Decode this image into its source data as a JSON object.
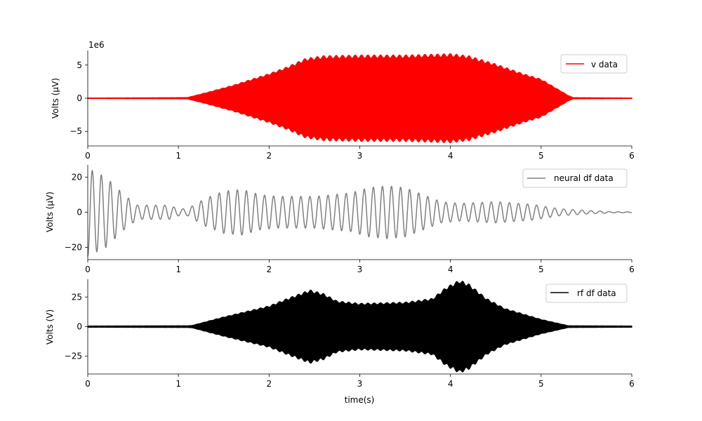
{
  "chart_data": [
    {
      "type": "line",
      "ylabel": "Volts (μV)",
      "y_offset_text": "1e6",
      "xlim": [
        0,
        6
      ],
      "ylim": [
        -7.2,
        7.2
      ],
      "xticks": [
        0,
        1,
        2,
        3,
        4,
        5,
        6
      ],
      "xtick_labels": [
        "0",
        "1",
        "2",
        "3",
        "4",
        "5",
        "6"
      ],
      "yticks": [
        -5,
        0,
        5
      ],
      "ytick_labels": [
        "−5",
        "0",
        "5"
      ],
      "legend": {
        "position": "top-right",
        "entries": [
          "v data"
        ]
      },
      "series": [
        {
          "name": "v data",
          "color": "#ff0000",
          "style": "dense oscillation, symmetric envelope",
          "envelope_points": [
            [
              0,
              0.05
            ],
            [
              1.0,
              0.1
            ],
            [
              1.1,
              0.12
            ],
            [
              1.3,
              0.8
            ],
            [
              1.6,
              1.9
            ],
            [
              2.0,
              3.6
            ],
            [
              2.2,
              4.6
            ],
            [
              2.4,
              5.8
            ],
            [
              2.6,
              6.2
            ],
            [
              3.0,
              6.3
            ],
            [
              3.5,
              6.3
            ],
            [
              4.0,
              6.5
            ],
            [
              4.2,
              6.2
            ],
            [
              4.5,
              5.0
            ],
            [
              4.8,
              3.6
            ],
            [
              5.0,
              2.8
            ],
            [
              5.3,
              0.4
            ],
            [
              5.35,
              0.1
            ],
            [
              6.0,
              0.05
            ]
          ]
        }
      ]
    },
    {
      "type": "line",
      "ylabel": "Volts (μV)",
      "xlim": [
        0,
        6
      ],
      "ylim": [
        -27,
        27
      ],
      "xticks": [
        0,
        1,
        2,
        3,
        4,
        5,
        6
      ],
      "xtick_labels": [
        "0",
        "1",
        "2",
        "3",
        "4",
        "5",
        "6"
      ],
      "yticks": [
        -20,
        0,
        20
      ],
      "ytick_labels": [
        "−20",
        "0",
        "20"
      ],
      "legend": {
        "position": "top-right",
        "entries": [
          "neural df data"
        ]
      },
      "series": [
        {
          "name": "neural df data",
          "color": "#808080",
          "frequency_hz": 10,
          "amplitude_points": [
            [
              0,
              25
            ],
            [
              0.2,
              20
            ],
            [
              0.4,
              10
            ],
            [
              0.55,
              4
            ],
            [
              0.9,
              4
            ],
            [
              1.0,
              2
            ],
            [
              1.1,
              2
            ],
            [
              1.3,
              8
            ],
            [
              1.5,
              12
            ],
            [
              1.7,
              13
            ],
            [
              1.9,
              10
            ],
            [
              2.1,
              9
            ],
            [
              2.5,
              9
            ],
            [
              2.9,
              11
            ],
            [
              3.1,
              14
            ],
            [
              3.3,
              15
            ],
            [
              3.5,
              14
            ],
            [
              3.7,
              10
            ],
            [
              3.9,
              6
            ],
            [
              4.1,
              5
            ],
            [
              4.5,
              6
            ],
            [
              4.9,
              4.5
            ],
            [
              5.2,
              2
            ],
            [
              5.5,
              1
            ],
            [
              5.8,
              0.3
            ],
            [
              6.0,
              0.2
            ]
          ]
        }
      ]
    },
    {
      "type": "line",
      "ylabel": "Volts (V)",
      "xlabel": "time(s)",
      "xlim": [
        0,
        6
      ],
      "ylim": [
        -40,
        40
      ],
      "xticks": [
        0,
        1,
        2,
        3,
        4,
        5,
        6
      ],
      "xtick_labels": [
        "0",
        "1",
        "2",
        "3",
        "4",
        "5",
        "6"
      ],
      "yticks": [
        -25,
        0,
        25
      ],
      "ytick_labels": [
        "−25",
        "0",
        "25"
      ],
      "legend": {
        "position": "top-right",
        "entries": [
          "rf df data"
        ]
      },
      "series": [
        {
          "name": "rf df data",
          "color": "#000000",
          "style": "dense oscillation, symmetric envelope",
          "envelope_points": [
            [
              0,
              0.6
            ],
            [
              1.1,
              0.8
            ],
            [
              1.15,
              1.0
            ],
            [
              1.5,
              8
            ],
            [
              2.0,
              17
            ],
            [
              2.2,
              23
            ],
            [
              2.45,
              30
            ],
            [
              2.6,
              27
            ],
            [
              2.75,
              21
            ],
            [
              3.0,
              19
            ],
            [
              3.5,
              20
            ],
            [
              3.8,
              23
            ],
            [
              3.95,
              32
            ],
            [
              4.1,
              38
            ],
            [
              4.2,
              35
            ],
            [
              4.4,
              23
            ],
            [
              4.6,
              15
            ],
            [
              5.0,
              6
            ],
            [
              5.3,
              0.8
            ],
            [
              6.0,
              0.6
            ]
          ]
        }
      ]
    }
  ]
}
